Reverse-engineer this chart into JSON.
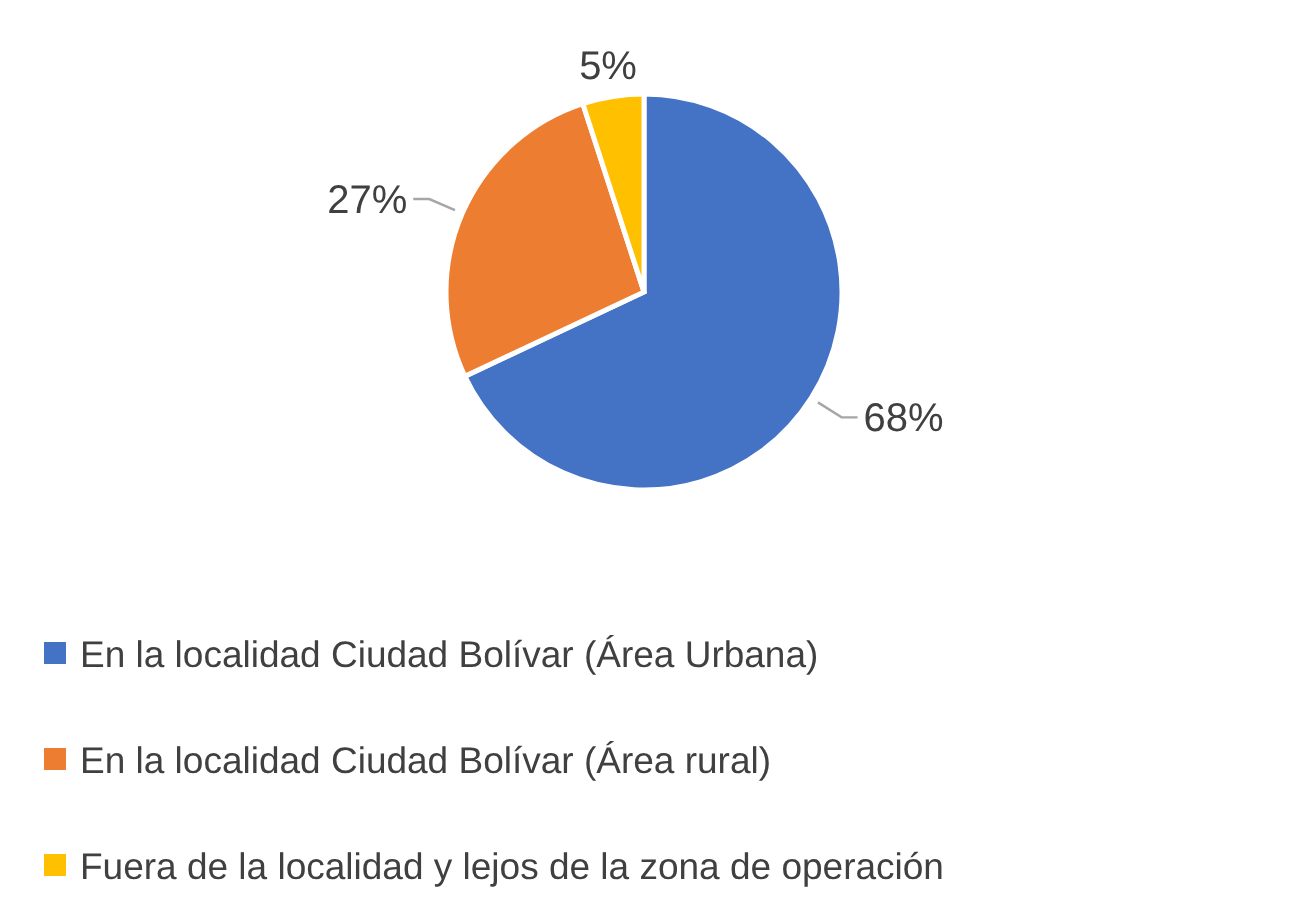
{
  "chart_data": {
    "type": "pie",
    "categories": [
      "En la localidad Ciudad Bolívar (Área Urbana)",
      "En la localidad Ciudad Bolívar (Área rural)",
      "Fuera de la localidad y lejos de la zona de operación"
    ],
    "values": [
      68,
      27,
      5
    ],
    "colors": [
      "#4472c4",
      "#ed7d31",
      "#ffc000"
    ],
    "value_labels": [
      "68%",
      "27%",
      "5%"
    ],
    "legend": "bottom"
  }
}
